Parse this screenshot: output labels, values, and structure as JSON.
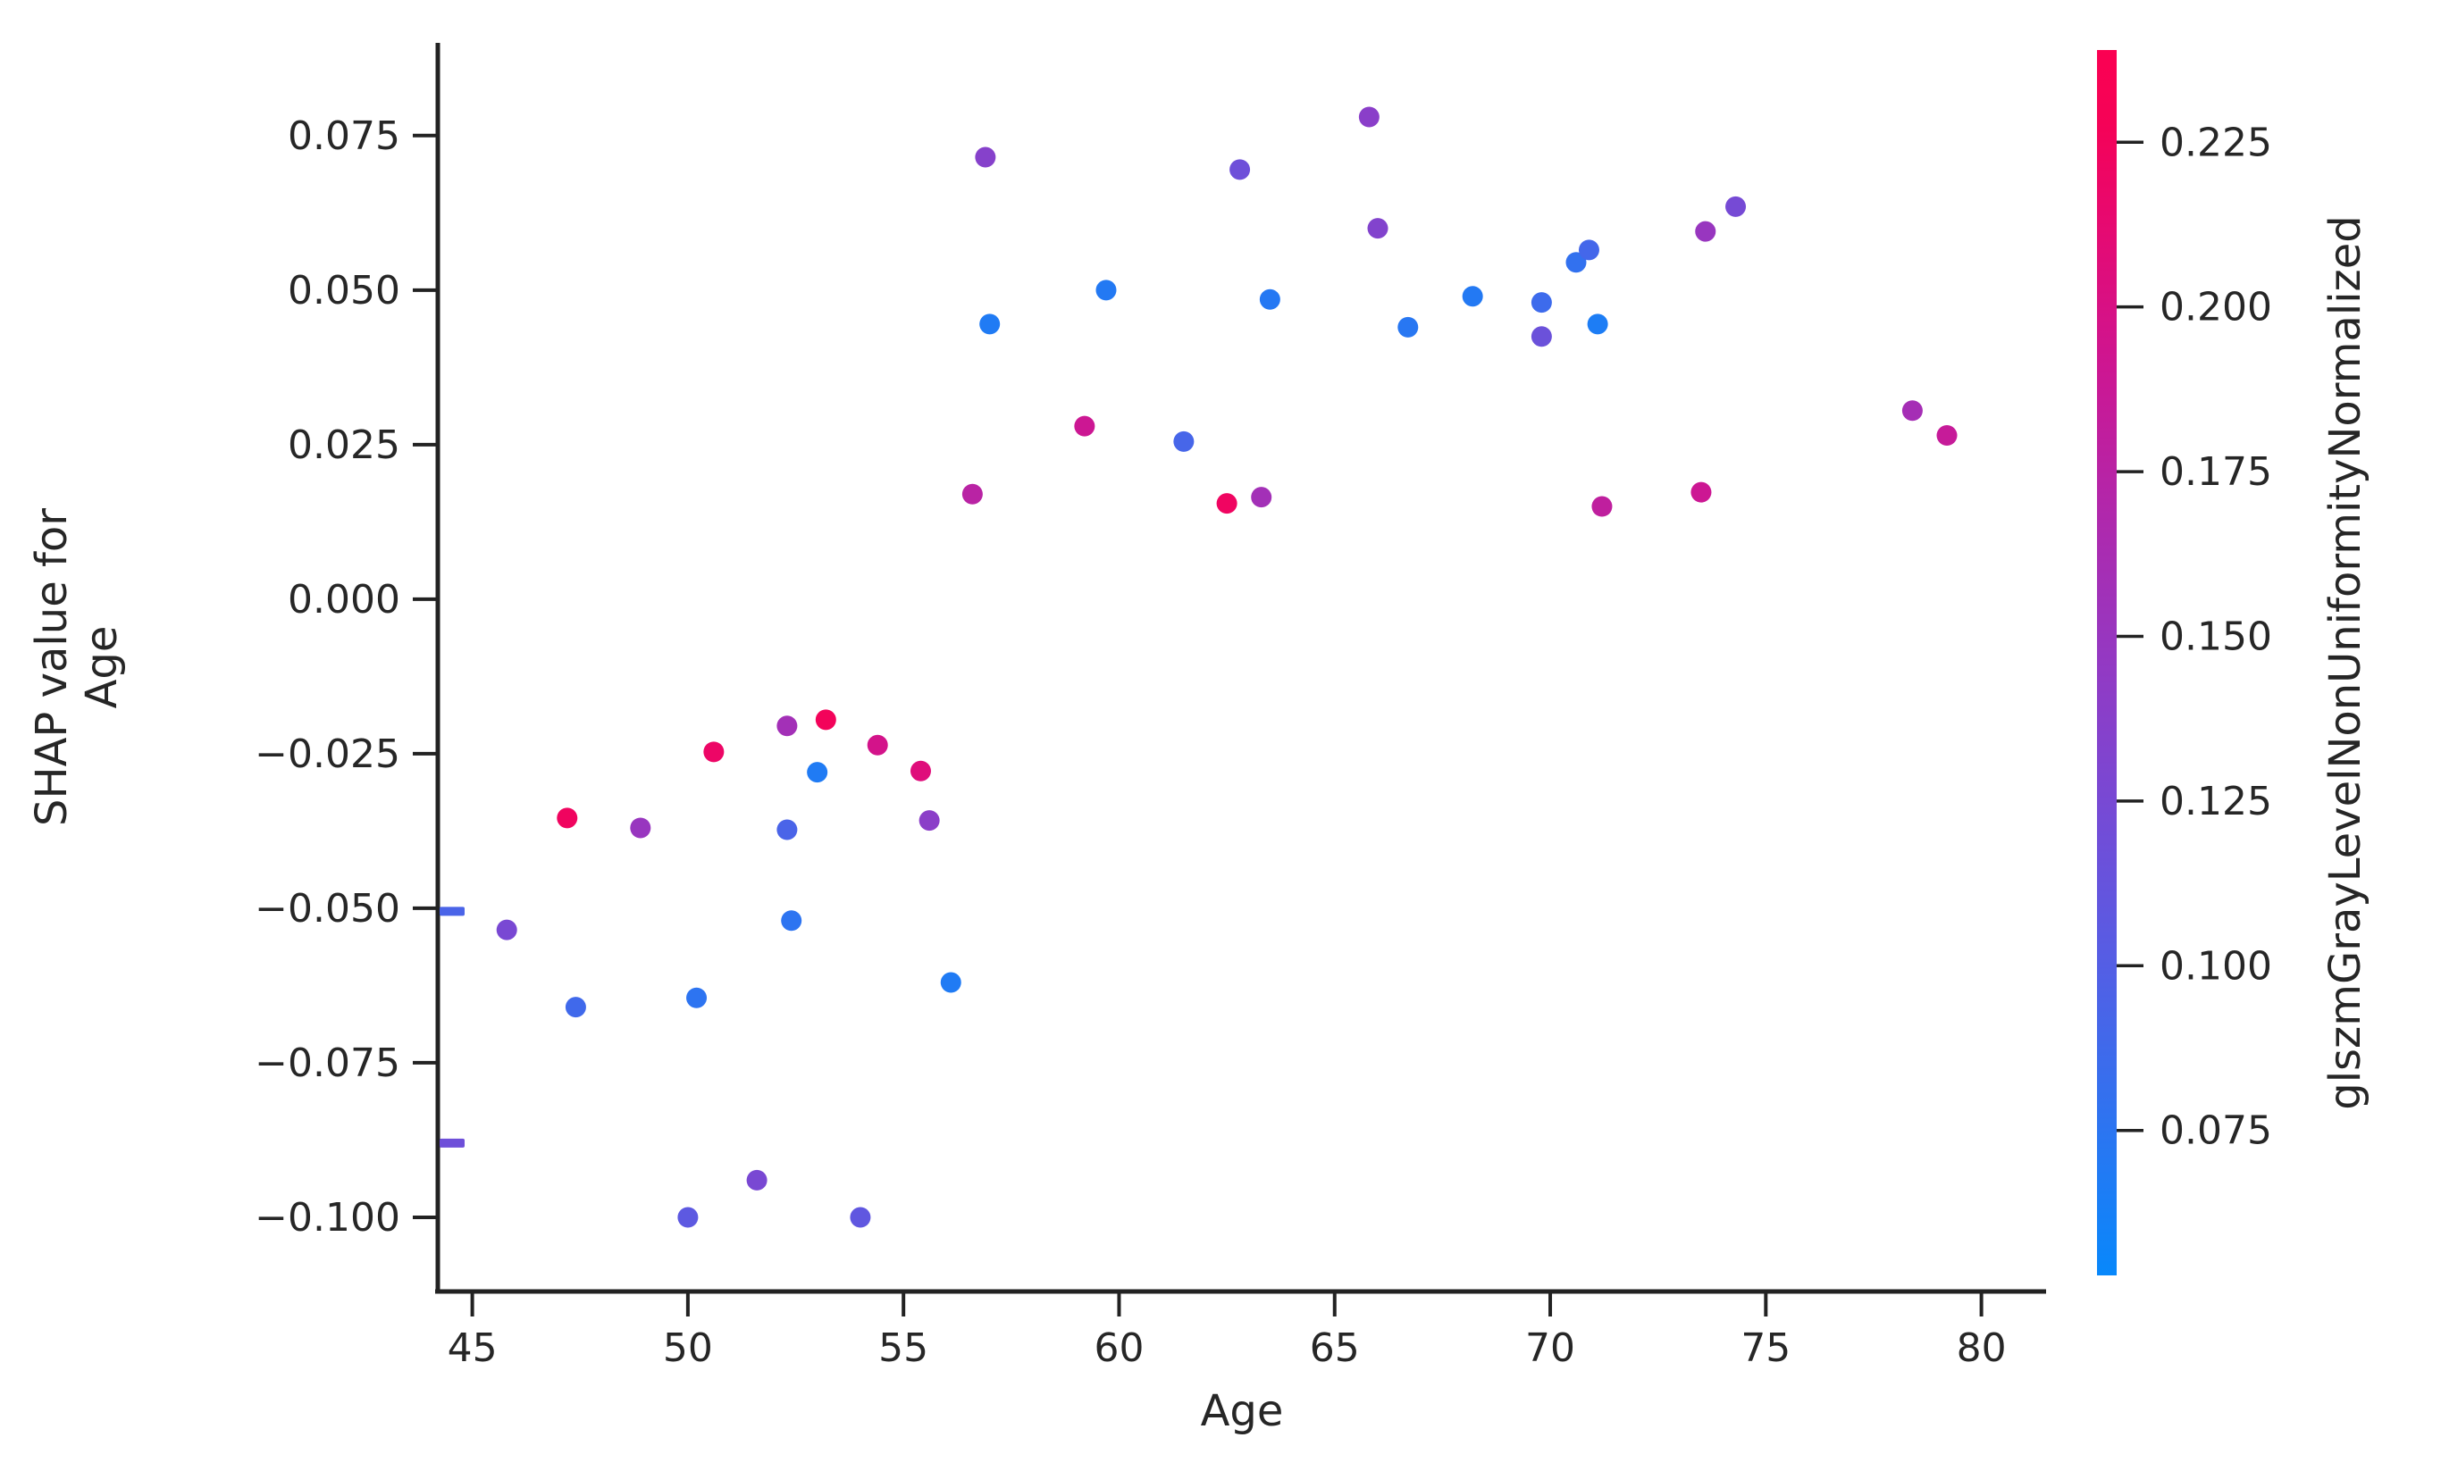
{
  "figure": {
    "xlabel": "Age",
    "ylabel": "SHAP value for\nAge",
    "colorbar_label": "glszmGrayLevelNonUniformityNormalized"
  },
  "chart_data": {
    "type": "scatter",
    "title": "",
    "xlabel": "Age",
    "ylabel": "SHAP value for Age",
    "grid": false,
    "xlim": [
      44.2,
      81.5
    ],
    "ylim": [
      -0.112,
      0.09
    ],
    "x_ticks": [
      45,
      50,
      55,
      60,
      65,
      70,
      75,
      80
    ],
    "x_tick_labels": [
      "45",
      "50",
      "55",
      "60",
      "65",
      "70",
      "75",
      "80"
    ],
    "y_ticks": [
      0.075,
      0.05,
      0.025,
      0.0,
      -0.025,
      -0.05,
      -0.075,
      -0.1
    ],
    "y_tick_labels": [
      "0.075",
      "0.050",
      "0.025",
      "0.000",
      "−0.025",
      "−0.050",
      "−0.075",
      "−0.100"
    ],
    "colorbar": {
      "label": "glszmGrayLevelNonUniformityNormalized",
      "vmin": 0.053,
      "vmax": 0.239,
      "ticks": [
        0.225,
        0.2,
        0.175,
        0.15,
        0.125,
        0.1,
        0.075
      ],
      "tick_labels": [
        "0.225",
        "0.200",
        "0.175",
        "0.150",
        "0.125",
        "0.100",
        "0.075"
      ],
      "position": "right"
    },
    "colormap_stops": [
      {
        "t": 0.0,
        "rgb": [
          8,
          136,
          251
        ]
      },
      {
        "t": 0.13,
        "rgb": [
          47,
          115,
          240
        ]
      },
      {
        "t": 0.26,
        "rgb": [
          86,
          93,
          228
        ]
      },
      {
        "t": 0.38,
        "rgb": [
          118,
          74,
          213
        ]
      },
      {
        "t": 0.5,
        "rgb": [
          147,
          57,
          195
        ]
      },
      {
        "t": 0.62,
        "rgb": [
          176,
          40,
          172
        ]
      },
      {
        "t": 0.74,
        "rgb": [
          205,
          22,
          146
        ]
      },
      {
        "t": 0.86,
        "rgb": [
          231,
          9,
          112
        ]
      },
      {
        "t": 0.94,
        "rgb": [
          245,
          2,
          87
        ]
      },
      {
        "t": 1.0,
        "rgb": [
          251,
          1,
          82
        ]
      }
    ],
    "points": [
      {
        "age": 56.9,
        "shap": 0.0715,
        "feature": 0.136
      },
      {
        "age": 65.8,
        "shap": 0.078,
        "feature": 0.139
      },
      {
        "age": 62.8,
        "shap": 0.0695,
        "feature": 0.118
      },
      {
        "age": 66.0,
        "shap": 0.06,
        "feature": 0.133
      },
      {
        "age": 74.3,
        "shap": 0.0635,
        "feature": 0.124
      },
      {
        "age": 73.6,
        "shap": 0.0595,
        "feature": 0.15
      },
      {
        "age": 59.7,
        "shap": 0.05,
        "feature": 0.07
      },
      {
        "age": 57.0,
        "shap": 0.0445,
        "feature": 0.068
      },
      {
        "age": 63.5,
        "shap": 0.0485,
        "feature": 0.071
      },
      {
        "age": 66.7,
        "shap": 0.044,
        "feature": 0.073
      },
      {
        "age": 68.2,
        "shap": 0.049,
        "feature": 0.07
      },
      {
        "age": 70.6,
        "shap": 0.0545,
        "feature": 0.079
      },
      {
        "age": 70.9,
        "shap": 0.0565,
        "feature": 0.09
      },
      {
        "age": 69.8,
        "shap": 0.048,
        "feature": 0.086
      },
      {
        "age": 69.8,
        "shap": 0.0425,
        "feature": 0.116
      },
      {
        "age": 71.1,
        "shap": 0.0445,
        "feature": 0.066
      },
      {
        "age": 61.5,
        "shap": 0.0255,
        "feature": 0.092
      },
      {
        "age": 59.2,
        "shap": 0.028,
        "feature": 0.19
      },
      {
        "age": 56.6,
        "shap": 0.017,
        "feature": 0.175
      },
      {
        "age": 62.5,
        "shap": 0.0155,
        "feature": 0.222
      },
      {
        "age": 63.3,
        "shap": 0.0165,
        "feature": 0.158
      },
      {
        "age": 71.2,
        "shap": 0.015,
        "feature": 0.18
      },
      {
        "age": 73.5,
        "shap": 0.0173,
        "feature": 0.19
      },
      {
        "age": 78.4,
        "shap": 0.0305,
        "feature": 0.16
      },
      {
        "age": 79.2,
        "shap": 0.0265,
        "feature": 0.185
      },
      {
        "age": 52.3,
        "shap": -0.0205,
        "feature": 0.158
      },
      {
        "age": 53.2,
        "shap": -0.0195,
        "feature": 0.226
      },
      {
        "age": 50.6,
        "shap": -0.0247,
        "feature": 0.219
      },
      {
        "age": 54.4,
        "shap": -0.0236,
        "feature": 0.196
      },
      {
        "age": 55.4,
        "shap": -0.0278,
        "feature": 0.206
      },
      {
        "age": 53.0,
        "shap": -0.028,
        "feature": 0.068
      },
      {
        "age": 47.2,
        "shap": -0.0354,
        "feature": 0.223
      },
      {
        "age": 48.9,
        "shap": -0.037,
        "feature": 0.15
      },
      {
        "age": 52.3,
        "shap": -0.0373,
        "feature": 0.094
      },
      {
        "age": 55.6,
        "shap": -0.0358,
        "feature": 0.14
      },
      {
        "age": 45.8,
        "shap": -0.0535,
        "feature": 0.126
      },
      {
        "age": 52.4,
        "shap": -0.052,
        "feature": 0.076
      },
      {
        "age": 47.4,
        "shap": -0.066,
        "feature": 0.088
      },
      {
        "age": 50.2,
        "shap": -0.0645,
        "feature": 0.076
      },
      {
        "age": 56.1,
        "shap": -0.062,
        "feature": 0.068
      },
      {
        "age": 50.0,
        "shap": -0.1,
        "feature": 0.106
      },
      {
        "age": 51.6,
        "shap": -0.094,
        "feature": 0.126
      },
      {
        "age": 54.0,
        "shap": -0.1,
        "feature": 0.108
      }
    ],
    "clipped_edge_points": [
      {
        "shap": -0.0505,
        "feature": 0.094
      },
      {
        "shap": -0.088,
        "feature": 0.118
      }
    ]
  }
}
